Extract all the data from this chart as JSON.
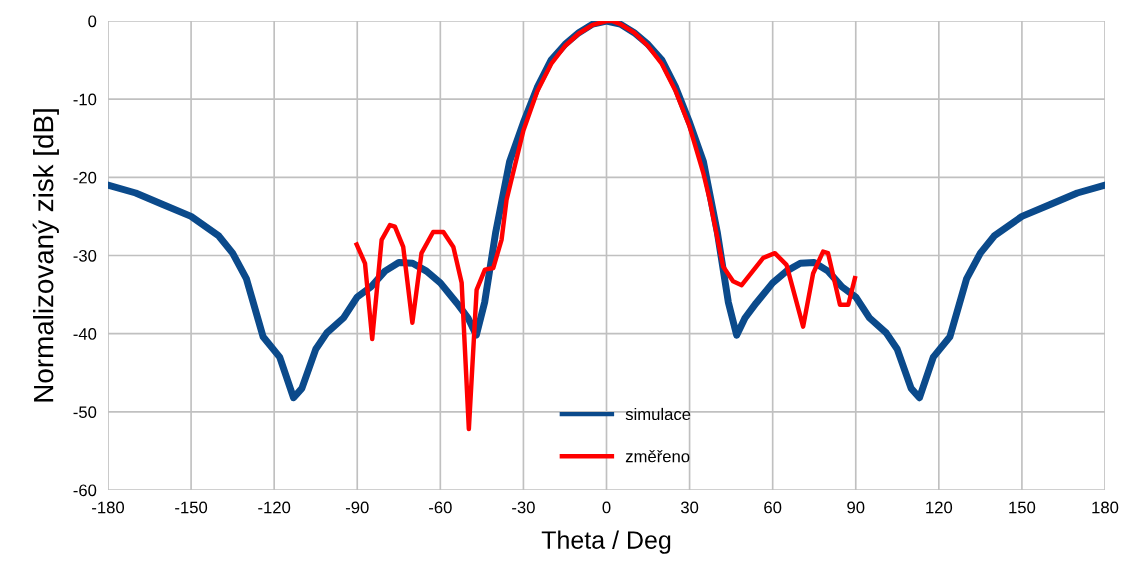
{
  "chart_data": {
    "type": "line",
    "xlabel": "Theta / Deg",
    "ylabel": "Normalizovaný zisk [dB]",
    "xlim": [
      -180,
      180
    ],
    "xticks": [
      -180,
      -150,
      -120,
      -90,
      -60,
      -30,
      0,
      30,
      60,
      90,
      120,
      150,
      180
    ],
    "ylim": [
      -60,
      0
    ],
    "yticks": [
      -60,
      -50,
      -40,
      -30,
      -20,
      -10,
      0
    ],
    "grid": true,
    "legend": "bottom",
    "marker": "none",
    "line_style": "solid",
    "series": [
      {
        "name": "simulace",
        "color": "#0b4a8b",
        "x": [
          -180,
          -170,
          -160,
          -150,
          -140,
          -135,
          -130,
          -124,
          -118,
          -113,
          -110,
          -105,
          -101,
          -95,
          -90,
          -85,
          -80,
          -75,
          -70,
          -65,
          -60,
          -54,
          -50,
          -47,
          -44,
          -40,
          -35,
          -30,
          -25,
          -20,
          -15,
          -10,
          -5,
          0,
          5,
          10,
          15,
          20,
          25,
          30,
          35,
          40,
          44,
          47,
          50,
          54,
          60,
          65,
          70,
          75,
          80,
          85,
          90,
          95,
          101,
          105,
          110,
          113,
          118,
          124,
          130,
          135,
          140,
          150,
          160,
          170,
          180
        ],
        "values": [
          -21,
          -22,
          -23.5,
          -25,
          -27.5,
          -29.7,
          -33,
          -40.4,
          -43,
          -48.2,
          -47,
          -42,
          -39.9,
          -38,
          -35.3,
          -34,
          -32,
          -30.9,
          -31,
          -32,
          -33.5,
          -36.1,
          -38,
          -40.2,
          -36,
          -27,
          -18,
          -13,
          -8.5,
          -5,
          -3,
          -1.5,
          -0.4,
          0,
          -0.4,
          -1.5,
          -3,
          -5,
          -8.5,
          -13,
          -18,
          -27,
          -36,
          -40.2,
          -38,
          -36.1,
          -33.5,
          -32,
          -31,
          -30.9,
          -32,
          -34,
          -35.3,
          -38,
          -39.9,
          -42,
          -47,
          -48.2,
          -43,
          -40.4,
          -33,
          -29.7,
          -27.5,
          -25,
          -23.5,
          -22,
          -21
        ]
      },
      {
        "name": "změřeno",
        "color": "#ff0000",
        "x": [
          -90.2,
          -87.2,
          -84.6,
          -81.2,
          -78.2,
          -76.4,
          -73.4,
          -70.1,
          -66.8,
          -62.6,
          -58.9,
          -55.3,
          -52.3,
          -49.7,
          -46.9,
          -43.9,
          -40.9,
          -37.9,
          -36.1,
          -30,
          -25,
          -20,
          -15,
          -10,
          -5,
          0,
          2,
          5,
          10,
          15,
          20,
          25,
          30,
          35,
          37.3,
          42.1,
          45.7,
          48.8,
          56.6,
          60.8,
          65,
          71,
          74.6,
          78.2,
          80,
          84.3,
          87.3,
          89.7
        ],
        "values": [
          -28.6,
          -31,
          -40.7,
          -28,
          -26.1,
          -26.3,
          -28.9,
          -38.6,
          -29.7,
          -27,
          -27,
          -28.9,
          -33.5,
          -52.2,
          -34.4,
          -31.8,
          -31.6,
          -28,
          -22.9,
          -14,
          -9,
          -5.5,
          -3.2,
          -1.6,
          -0.5,
          0,
          0,
          -0.4,
          -1.5,
          -3.2,
          -5.5,
          -9,
          -13.5,
          -19.5,
          -22.9,
          -31.4,
          -33.3,
          -33.8,
          -30.3,
          -29.7,
          -31.2,
          -39.1,
          -32.3,
          -29.5,
          -29.7,
          -36.3,
          -36.3,
          -32.9
        ]
      }
    ]
  }
}
